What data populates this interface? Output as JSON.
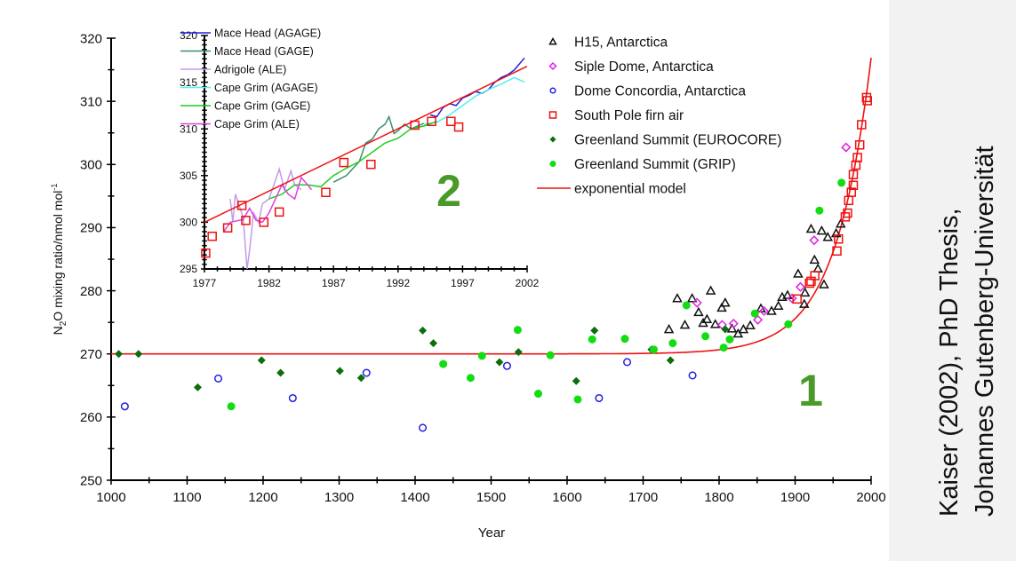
{
  "colors": {
    "h15": "#111111",
    "siple": "#e020e0",
    "dome_c": "#2020e0",
    "south_pole": "#ee1111",
    "eurocore": "#0a6e0a",
    "grip": "#11dd11",
    "model": "#ee1111",
    "label_number": "#4a9a2a",
    "mace_agage": "#2222dd",
    "mace_gage": "#3a8f6e",
    "adrigole": "#c49be8",
    "cg_agage": "#55eeee",
    "cg_gage": "#22cc22",
    "cg_ale": "#e040e0"
  },
  "panel_labels": {
    "one": "1",
    "two": "2"
  },
  "credit": {
    "line1": "Kaiser (2002), PhD Thesis,",
    "line2": "Johannes Gutenberg-Universität"
  },
  "chart_data": [
    {
      "type": "scatter",
      "xlabel": "Year",
      "ylabel_main": "N",
      "ylabel_sub": "2",
      "ylabel_rest": "O mixing ratio/nmol mol",
      "ylabel_sup": "-1",
      "xlim": [
        1000,
        2000
      ],
      "ylim": [
        250,
        320
      ],
      "xticks": [
        "1000",
        "1100",
        "1200",
        "1300",
        "1400",
        "1500",
        "1600",
        "1700",
        "1800",
        "1900",
        "2000"
      ],
      "yticks": [
        "250",
        "260",
        "270",
        "280",
        "290",
        "300",
        "310",
        "320"
      ],
      "grid": false,
      "legend_position": "top-right",
      "series": [
        {
          "name": "H15, Antarctica",
          "marker": "triangle-open",
          "color_key": "h15",
          "points": [
            [
              1734,
              273.9
            ],
            [
              1745,
              278.8
            ],
            [
              1755,
              274.6
            ],
            [
              1764.5,
              278.8
            ],
            [
              1773,
              276.6
            ],
            [
              1779,
              274.9
            ],
            [
              1784,
              275.5
            ],
            [
              1789,
              280
            ],
            [
              1795,
              274.7
            ],
            [
              1803.5,
              277.3
            ],
            [
              1808,
              278.1
            ],
            [
              1817,
              274
            ],
            [
              1825,
              273.2
            ],
            [
              1832,
              273.9
            ],
            [
              1841,
              274.5
            ],
            [
              1855,
              277.2
            ],
            [
              1869,
              276.8
            ],
            [
              1878,
              277.6
            ],
            [
              1883,
              279
            ],
            [
              1890,
              279.3
            ],
            [
              1904,
              282.7
            ],
            [
              1912,
              277.9
            ],
            [
              1913,
              279.7
            ],
            [
              1921,
              289.8
            ],
            [
              1925.5,
              284.9
            ],
            [
              1930,
              283.5
            ],
            [
              1935,
              289.5
            ],
            [
              1938,
              281
            ],
            [
              1943,
              288.5
            ],
            [
              1954,
              289.1
            ],
            [
              1960,
              290.6
            ]
          ]
        },
        {
          "name": "Siple Dome, Antarctica",
          "marker": "diamond-open",
          "color_key": "siple",
          "points": [
            [
              1771,
              278.1
            ],
            [
              1804,
              274.6
            ],
            [
              1819,
              274.8
            ],
            [
              1851,
              275.4
            ],
            [
              1859,
              276.8
            ],
            [
              1896,
              278.8
            ],
            [
              1907,
              280.6
            ],
            [
              1925,
              288
            ],
            [
              1967,
              302.7
            ]
          ]
        },
        {
          "name": "Dome Concordia, Antarctica",
          "marker": "circle-open",
          "color_key": "dome_c",
          "points": [
            [
              1018,
              261.7
            ],
            [
              1141,
              266.1
            ],
            [
              1239,
              263
            ],
            [
              1336,
              267
            ],
            [
              1410,
              258.3
            ],
            [
              1521,
              268.1
            ],
            [
              1642,
              263
            ],
            [
              1679,
              268.7
            ],
            [
              1765,
              266.6
            ]
          ]
        },
        {
          "name": "South Pole firn air",
          "marker": "square-open",
          "color_key": "south_pole",
          "points": [
            [
              1902.5,
              278.7
            ],
            [
              1919,
              281.2
            ],
            [
              1921,
              281.5
            ],
            [
              1926,
              282.4
            ],
            [
              1955,
              286.3
            ],
            [
              1957,
              288.2
            ],
            [
              1966,
              291.7
            ],
            [
              1969,
              292.3
            ],
            [
              1970.5,
              294.3
            ],
            [
              1974,
              295.6
            ],
            [
              1976.6,
              296.7
            ],
            [
              1976.6,
              298.4
            ],
            [
              1980,
              299.9
            ],
            [
              1982,
              301.1
            ],
            [
              1985,
              303.1
            ],
            [
              1987.5,
              306.3
            ],
            [
              1994,
              310.6
            ],
            [
              1995,
              310.1
            ]
          ]
        },
        {
          "name": "Greenland Summit (EUROCORE)",
          "marker": "diamond-filled",
          "color_key": "eurocore",
          "points": [
            [
              1010,
              270
            ],
            [
              1036,
              270
            ],
            [
              1114,
              264.7
            ],
            [
              1198,
              269
            ],
            [
              1223,
              267
            ],
            [
              1301,
              267.3
            ],
            [
              1329,
              266.2
            ],
            [
              1410,
              273.7
            ],
            [
              1424,
              271.7
            ],
            [
              1511,
              268.7
            ],
            [
              1536,
              270.3
            ],
            [
              1612,
              265.7
            ],
            [
              1636,
              273.7
            ],
            [
              1711,
              270.7
            ],
            [
              1736,
              269
            ],
            [
              1808,
              273.9
            ]
          ]
        },
        {
          "name": "Greenland Summit (GRIP)",
          "marker": "circle-filled",
          "color_key": "grip",
          "points": [
            [
              1158,
              261.7
            ],
            [
              1437,
              268.4
            ],
            [
              1473,
              266.2
            ],
            [
              1488,
              269.7
            ],
            [
              1535,
              273.8
            ],
            [
              1562,
              263.7
            ],
            [
              1578,
              269.8
            ],
            [
              1614,
              262.8
            ],
            [
              1633,
              272.3
            ],
            [
              1676,
              272.4
            ],
            [
              1714,
              270.7
            ],
            [
              1739,
              271.7
            ],
            [
              1757,
              277.7
            ],
            [
              1782,
              272.8
            ],
            [
              1806,
              271
            ],
            [
              1814,
              272.3
            ],
            [
              1847,
              276.4
            ],
            [
              1891,
              274.7
            ],
            [
              1932,
              292.7
            ],
            [
              1961,
              297.1
            ]
          ]
        },
        {
          "name": "exponential model",
          "marker": "line",
          "color_key": "model",
          "points": [
            [
              1000,
              270
            ],
            [
              1500,
              270
            ],
            [
              1700,
              270.1
            ],
            [
              1750,
              270.2
            ],
            [
              1800,
              270.6
            ],
            [
              1825,
              270.9
            ],
            [
              1850,
              271.9
            ],
            [
              1875,
              272.9
            ],
            [
              1900,
              275.4
            ],
            [
              1920,
              277.5
            ],
            [
              1940,
              280.3
            ],
            [
              1960,
              284.2
            ],
            [
              1970,
              286.9
            ],
            [
              1980,
              289.6
            ],
            [
              1990,
              293.2
            ],
            [
              2000,
              316.9
            ]
          ]
        }
      ]
    },
    {
      "type": "line",
      "xlim": [
        1977,
        2002
      ],
      "ylim": [
        295,
        320
      ],
      "xticks": [
        "1977",
        "1982",
        "1987",
        "1992",
        "1997",
        "2002"
      ],
      "yticks": [
        "295",
        "300",
        "305",
        "310",
        "315",
        "320"
      ],
      "grid": false,
      "legend_position": "top-left",
      "series": [
        {
          "name": "Mace Head (AGAGE)",
          "color_key": "mace_agage",
          "points": [
            [
              1994.5,
              311.5
            ],
            [
              1995,
              311.3
            ],
            [
              1995.5,
              312.3
            ],
            [
              1996,
              312.7
            ],
            [
              1996.5,
              312.5
            ],
            [
              1997,
              313.3
            ],
            [
              1997.5,
              313.6
            ],
            [
              1998,
              314
            ],
            [
              1998.5,
              313.8
            ],
            [
              1999,
              314.2
            ],
            [
              1999.5,
              315
            ],
            [
              2000,
              315.5
            ],
            [
              2000.5,
              315.8
            ],
            [
              2001,
              316.3
            ],
            [
              2001.8,
              317.6
            ]
          ]
        },
        {
          "name": "Mace Head (GAGE)",
          "color_key": "mace_gage",
          "points": [
            [
              1987,
              304.3
            ],
            [
              1988,
              305
            ],
            [
              1989,
              306.5
            ],
            [
              1989.5,
              308.5
            ],
            [
              1990,
              308.9
            ],
            [
              1990.5,
              310
            ],
            [
              1991,
              310.5
            ],
            [
              1991.3,
              311.3
            ],
            [
              1991.7,
              309.5
            ],
            [
              1992,
              309.8
            ],
            [
              1992.5,
              310.5
            ],
            [
              1993,
              310
            ],
            [
              1994,
              310.6
            ]
          ]
        },
        {
          "name": "Adrigole (ALE)",
          "color_key": "adrigole",
          "points": [
            [
              1979,
              302.5
            ],
            [
              1979.2,
              300
            ],
            [
              1979.4,
              303
            ],
            [
              1980,
              300.5
            ],
            [
              1980.3,
              295
            ],
            [
              1980.5,
              297
            ],
            [
              1980.8,
              301
            ],
            [
              1981.2,
              300
            ],
            [
              1981.5,
              302
            ],
            [
              1982,
              302.5
            ],
            [
              1982.5,
              304.5
            ],
            [
              1982.8,
              305.7
            ],
            [
              1983.2,
              303.5
            ],
            [
              1983.7,
              305.5
            ],
            [
              1984,
              304
            ],
            [
              1984.5,
              303.5
            ]
          ]
        },
        {
          "name": "Cape Grim (AGAGE)",
          "color_key": "cg_agage",
          "points": [
            [
              1994,
              310.5
            ],
            [
              1995,
              310.7
            ],
            [
              1996,
              311.5
            ],
            [
              1997,
              312.5
            ],
            [
              1998,
              313.5
            ],
            [
              1999,
              314.2
            ],
            [
              2000,
              314.8
            ],
            [
              2001,
              315.5
            ],
            [
              2001.8,
              315
            ]
          ]
        },
        {
          "name": "Cape Grim (GAGE)",
          "color_key": "cg_gage",
          "points": [
            [
              1982,
              302.5
            ],
            [
              1983,
              303
            ],
            [
              1984,
              304
            ],
            [
              1985,
              304
            ],
            [
              1986,
              303.8
            ],
            [
              1987,
              305
            ],
            [
              1988,
              305.8
            ],
            [
              1989,
              306.5
            ],
            [
              1990,
              307.5
            ],
            [
              1991,
              308.5
            ],
            [
              1992,
              309
            ],
            [
              1993,
              310
            ],
            [
              1994,
              310.3
            ],
            [
              1995,
              310.8
            ]
          ]
        },
        {
          "name": "Cape Grim (ALE)",
          "color_key": "cg_ale",
          "points": [
            [
              1978.5,
              299
            ],
            [
              1979,
              300
            ],
            [
              1980,
              300.3
            ],
            [
              1980.5,
              301.5
            ],
            [
              1981,
              300.2
            ],
            [
              1981.5,
              300
            ],
            [
              1982,
              301
            ],
            [
              1982.5,
              302.5
            ],
            [
              1983,
              304
            ],
            [
              1983.5,
              303
            ],
            [
              1984,
              302.5
            ],
            [
              1984.5,
              304.8
            ],
            [
              1985,
              304
            ],
            [
              1985.3,
              303.5
            ]
          ]
        },
        {
          "name": "",
          "marker": "square-open",
          "color_key": "south_pole",
          "points": [
            [
              1977.1,
              296.7
            ],
            [
              1977.6,
              298.5
            ],
            [
              1978.8,
              299.4
            ],
            [
              1979.9,
              301.8
            ],
            [
              1980.2,
              300.2
            ],
            [
              1981.6,
              300
            ],
            [
              1982.8,
              301.1
            ],
            [
              1986.4,
              303.2
            ],
            [
              1987.8,
              306.4
            ],
            [
              1989.9,
              306.2
            ],
            [
              1993.3,
              310.4
            ],
            [
              1994.6,
              310.8
            ],
            [
              1996.1,
              310.8
            ],
            [
              1996.7,
              310.2
            ]
          ]
        },
        {
          "name": "",
          "marker": "line",
          "color_key": "model",
          "points": [
            [
              1977,
              300
            ],
            [
              2002,
              316.7
            ]
          ]
        }
      ]
    }
  ]
}
